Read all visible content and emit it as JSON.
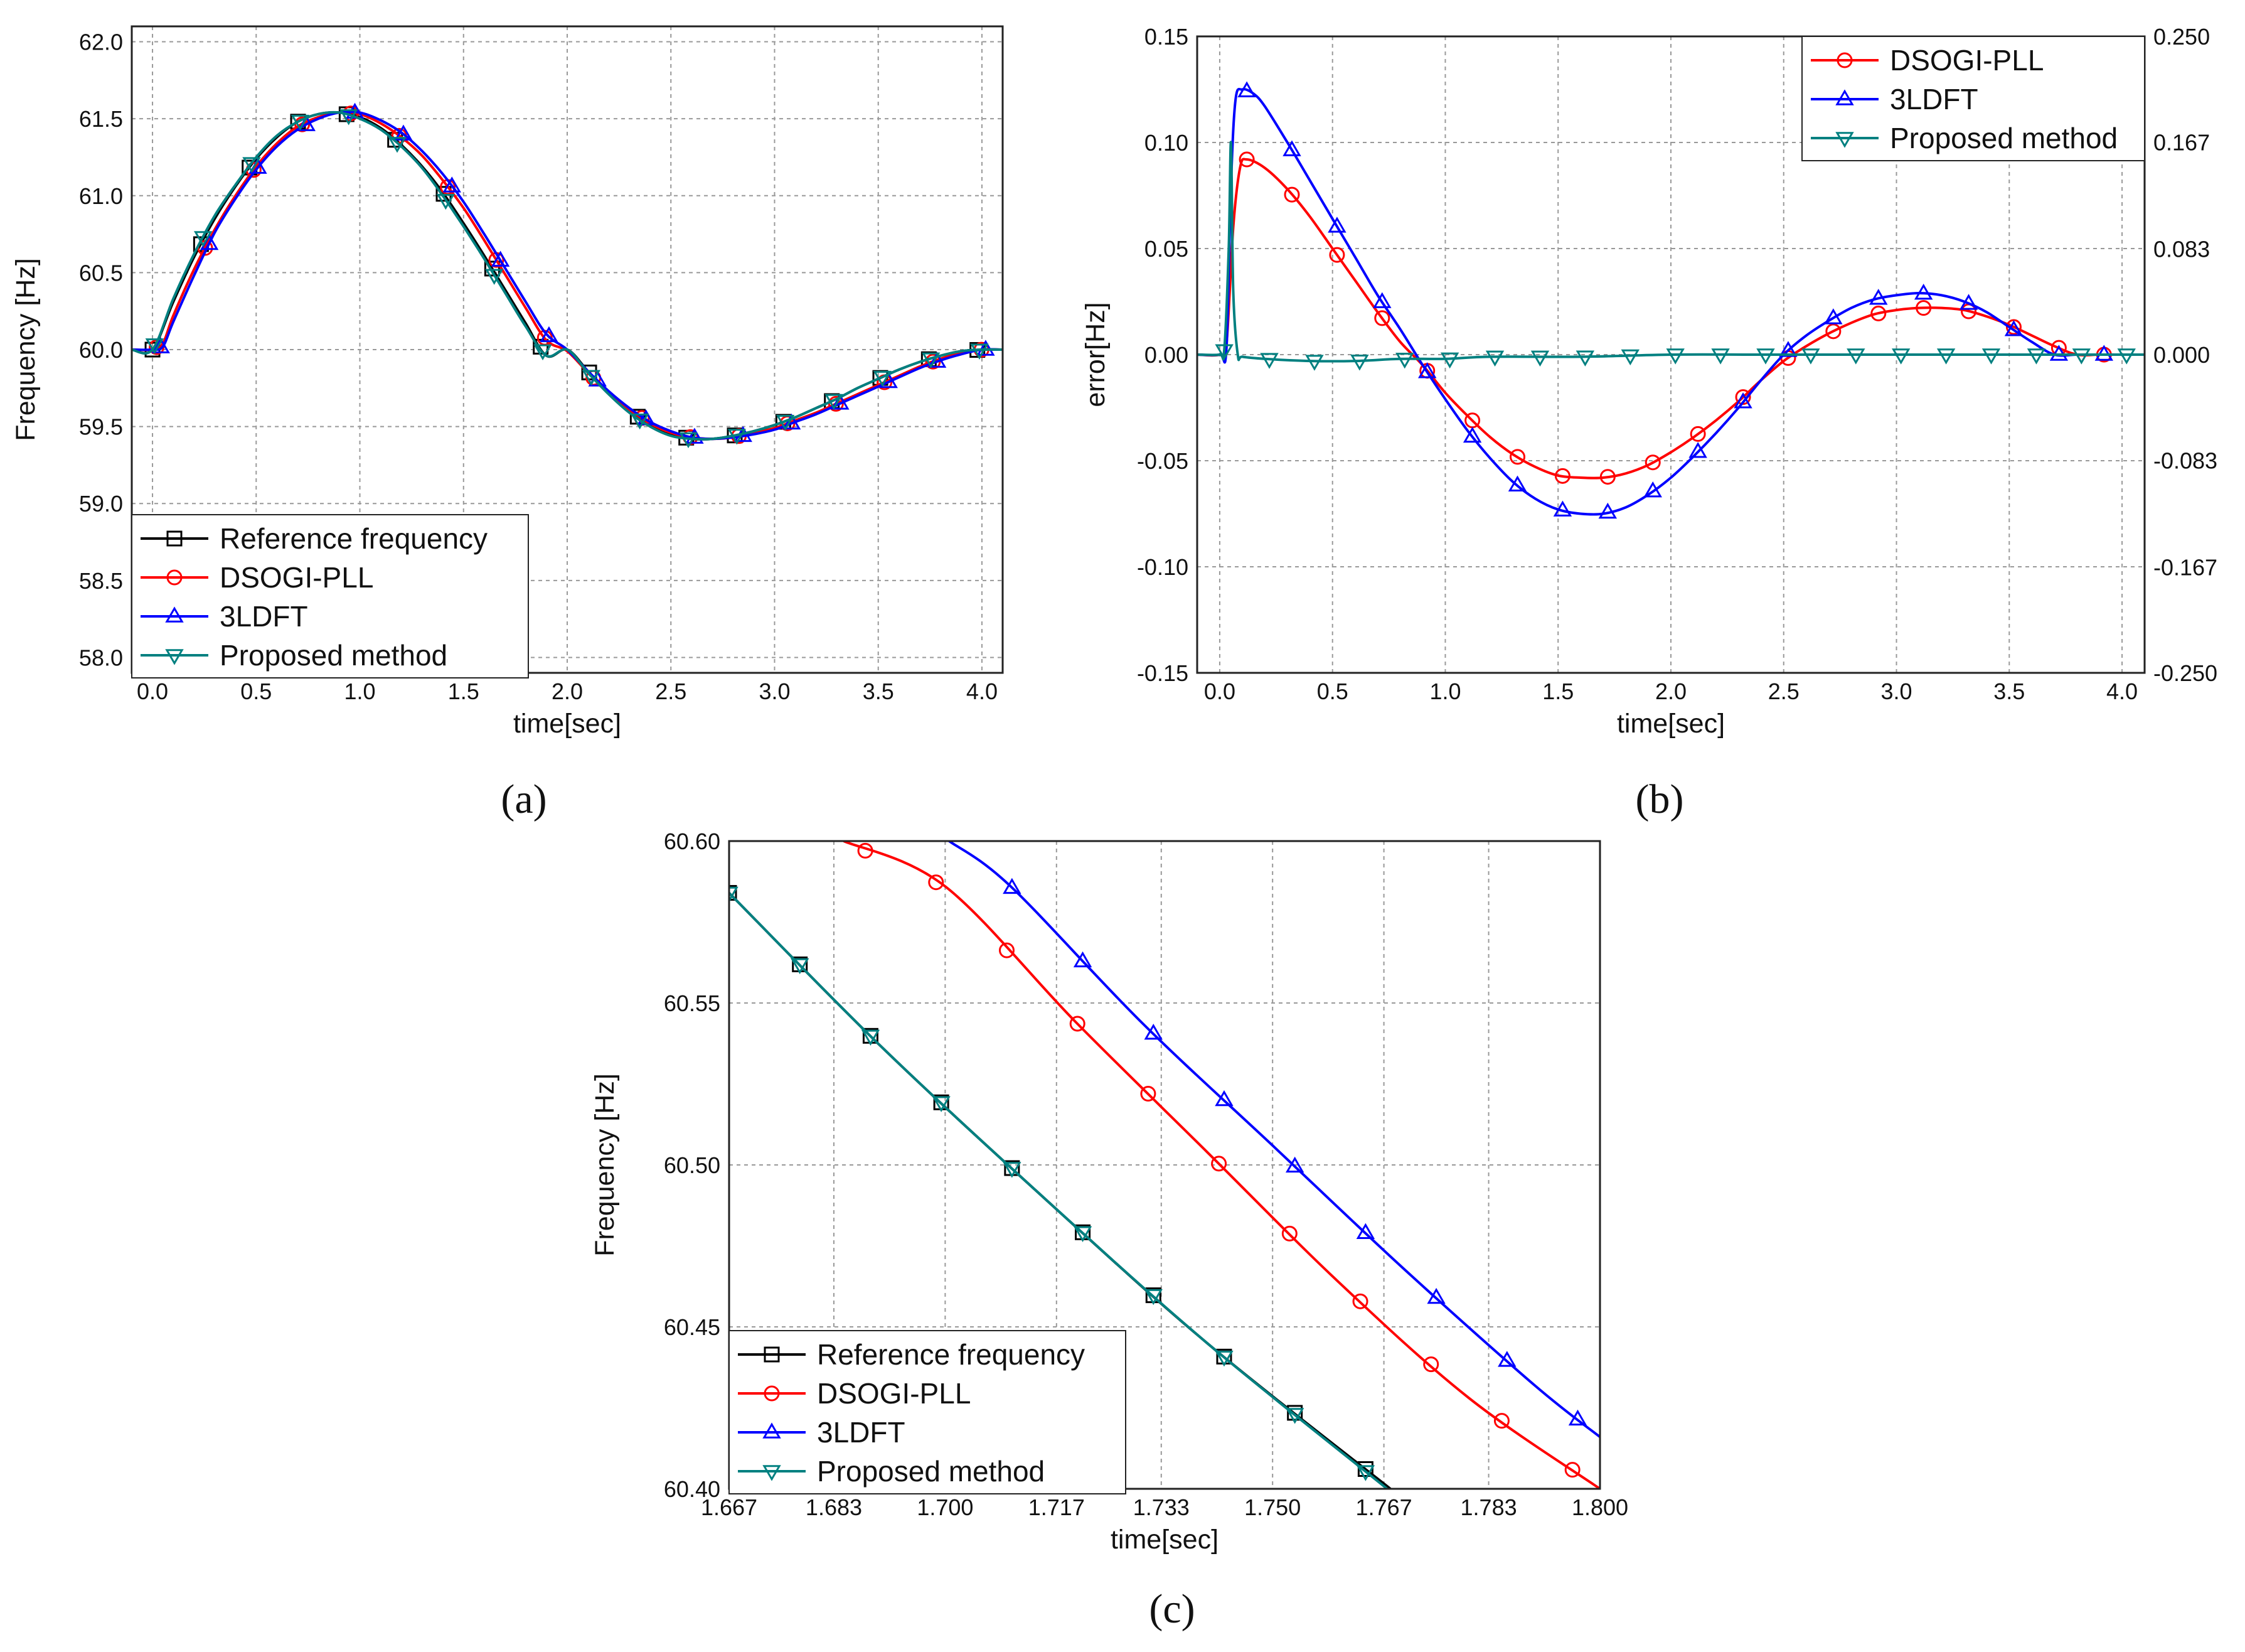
{
  "colors": {
    "reference": "#000000",
    "dsogi": "#ff0000",
    "ldft": "#0000ff",
    "proposed": "#008080",
    "grid": "#999999"
  },
  "chart_data": [
    {
      "type": "line",
      "panel": "a",
      "caption": "(a)",
      "xlabel": "time[sec]",
      "ylabel": "Frequency [Hz]",
      "xlim": [
        -0.1,
        4.1
      ],
      "ylim": [
        57.9,
        62.1
      ],
      "xticks": [
        "0.0",
        "0.5",
        "1.0",
        "1.5",
        "2.0",
        "2.5",
        "3.0",
        "3.5",
        "4.0"
      ],
      "yticks": [
        "58.0",
        "58.5",
        "59.0",
        "59.5",
        "60.0",
        "60.5",
        "61.0",
        "61.5",
        "62.0"
      ],
      "legend": [
        "Reference frequency",
        "DSOGI-PLL",
        "3LDFT",
        "Proposed method"
      ],
      "legend_position": "bottom-left",
      "series": [
        {
          "name": "Reference frequency",
          "x": [
            -0.1,
            0.0,
            0.1,
            0.2,
            0.3,
            0.4,
            0.5,
            0.6,
            0.7,
            0.8,
            0.9,
            1.0,
            1.1,
            1.2,
            1.3,
            1.4,
            1.5,
            1.6,
            1.7,
            1.8,
            1.9,
            2.0,
            2.1,
            2.2,
            2.3,
            2.4,
            2.5,
            2.6,
            2.7,
            2.8,
            2.9,
            3.0,
            3.1,
            3.2,
            3.3,
            3.4,
            3.5,
            3.6,
            3.7,
            3.8,
            3.9,
            4.0,
            4.1
          ],
          "values": [
            60.0,
            60.0,
            60.31,
            60.6,
            60.85,
            61.06,
            61.24,
            61.38,
            61.48,
            61.53,
            61.54,
            61.51,
            61.44,
            61.33,
            61.19,
            61.02,
            60.82,
            60.61,
            60.39,
            60.17,
            59.96,
            60.0,
            59.86,
            59.72,
            59.6,
            59.51,
            59.45,
            59.42,
            59.42,
            59.44,
            59.47,
            59.51,
            59.56,
            59.62,
            59.68,
            59.75,
            59.81,
            59.87,
            59.92,
            59.96,
            59.99,
            60.0,
            60.0
          ]
        },
        {
          "name": "DSOGI-PLL",
          "x": [
            -0.1,
            0.0,
            0.05,
            0.1,
            0.2,
            0.3,
            0.4,
            0.5,
            0.6,
            0.7,
            0.8,
            0.9,
            1.0,
            1.1,
            1.2,
            1.3,
            1.4,
            1.5,
            1.6,
            1.7,
            1.8,
            1.9,
            2.0,
            2.1,
            2.2,
            2.3,
            2.4,
            2.5,
            2.6,
            2.7,
            2.8,
            2.9,
            3.0,
            3.1,
            3.2,
            3.3,
            3.4,
            3.5,
            3.6,
            3.7,
            3.8,
            3.9,
            4.0,
            4.1
          ],
          "values": [
            60.0,
            60.0,
            60.04,
            60.22,
            60.52,
            60.78,
            61.0,
            61.19,
            61.34,
            61.45,
            61.51,
            61.54,
            61.53,
            61.47,
            61.38,
            61.26,
            61.1,
            60.92,
            60.71,
            60.49,
            60.27,
            60.06,
            59.99,
            59.85,
            59.72,
            59.61,
            59.52,
            59.46,
            59.43,
            59.42,
            59.43,
            59.46,
            59.49,
            59.54,
            59.59,
            59.65,
            59.71,
            59.77,
            59.83,
            59.89,
            59.94,
            59.98,
            60.0,
            60.0
          ]
        },
        {
          "name": "3LDFT",
          "x": [
            -0.1,
            0.0,
            0.05,
            0.1,
            0.2,
            0.3,
            0.4,
            0.5,
            0.6,
            0.7,
            0.8,
            0.9,
            1.0,
            1.1,
            1.2,
            1.3,
            1.4,
            1.5,
            1.6,
            1.7,
            1.8,
            1.9,
            2.0,
            2.1,
            2.2,
            2.3,
            2.4,
            2.5,
            2.6,
            2.7,
            2.8,
            2.9,
            3.0,
            3.1,
            3.2,
            3.3,
            3.4,
            3.5,
            3.6,
            3.7,
            3.8,
            3.9,
            4.0,
            4.1
          ],
          "values": [
            60.0,
            60.0,
            60.02,
            60.18,
            60.48,
            60.76,
            60.98,
            61.17,
            61.32,
            61.43,
            61.5,
            61.54,
            61.54,
            61.49,
            61.41,
            61.29,
            61.14,
            60.96,
            60.75,
            60.53,
            60.31,
            60.1,
            60.0,
            59.86,
            59.73,
            59.62,
            59.53,
            59.47,
            59.43,
            59.42,
            59.43,
            59.45,
            59.48,
            59.53,
            59.58,
            59.64,
            59.7,
            59.76,
            59.82,
            59.88,
            59.93,
            59.97,
            60.0,
            60.0
          ]
        },
        {
          "name": "Proposed method",
          "x": [
            -0.1,
            0.0,
            0.1,
            0.2,
            0.3,
            0.4,
            0.5,
            0.6,
            0.7,
            0.8,
            0.9,
            1.0,
            1.1,
            1.2,
            1.3,
            1.4,
            1.5,
            1.6,
            1.7,
            1.8,
            1.9,
            2.0,
            2.1,
            2.2,
            2.3,
            2.4,
            2.5,
            2.6,
            2.7,
            2.8,
            2.9,
            3.0,
            3.1,
            3.2,
            3.3,
            3.4,
            3.5,
            3.6,
            3.7,
            3.8,
            3.9,
            4.0,
            4.1
          ],
          "values": [
            60.0,
            60.0,
            60.33,
            60.62,
            60.87,
            61.07,
            61.25,
            61.39,
            61.48,
            61.53,
            61.54,
            61.5,
            61.43,
            61.32,
            61.18,
            61.0,
            60.8,
            60.59,
            60.37,
            60.15,
            59.96,
            60.0,
            59.85,
            59.71,
            59.59,
            59.5,
            59.44,
            59.42,
            59.42,
            59.44,
            59.47,
            59.51,
            59.56,
            59.62,
            59.68,
            59.75,
            59.81,
            59.87,
            59.92,
            59.96,
            59.99,
            60.0,
            60.0
          ]
        }
      ]
    },
    {
      "type": "line",
      "panel": "b",
      "caption": "(b)",
      "xlabel": "time[sec]",
      "ylabel": "error[Hz]",
      "xlim": [
        -0.1,
        4.1
      ],
      "ylim": [
        -0.15,
        0.15
      ],
      "y2lim": [
        -0.25,
        0.25
      ],
      "xticks": [
        "0.0",
        "0.5",
        "1.0",
        "1.5",
        "2.0",
        "2.5",
        "3.0",
        "3.5",
        "4.0"
      ],
      "yticks": [
        "-0.15",
        "-0.10",
        "-0.05",
        "0.00",
        "0.05",
        "0.10",
        "0.15"
      ],
      "y2ticks": [
        "-0.250",
        "-0.167",
        "-0.083",
        "0.000",
        "0.083",
        "0.167",
        "0.250"
      ],
      "legend": [
        "DSOGI-PLL",
        "3LDFT",
        "Proposed method"
      ],
      "legend_position": "top-right",
      "series": [
        {
          "name": "DSOGI-PLL",
          "x": [
            -0.1,
            0.0,
            0.03,
            0.06,
            0.09,
            0.12,
            0.2,
            0.3,
            0.4,
            0.5,
            0.6,
            0.7,
            0.8,
            0.9,
            1.0,
            1.1,
            1.2,
            1.3,
            1.4,
            1.5,
            1.6,
            1.7,
            1.8,
            1.9,
            2.0,
            2.1,
            2.2,
            2.3,
            2.4,
            2.5,
            2.6,
            2.7,
            2.8,
            2.9,
            3.0,
            3.1,
            3.2,
            3.3,
            3.4,
            3.5,
            3.6,
            3.7,
            3.8,
            3.9,
            4.0,
            4.1
          ],
          "values": [
            0.0,
            0.0,
            0.005,
            0.06,
            0.088,
            0.092,
            0.088,
            0.078,
            0.065,
            0.05,
            0.035,
            0.02,
            0.006,
            -0.005,
            -0.018,
            -0.029,
            -0.039,
            -0.047,
            -0.053,
            -0.057,
            -0.058,
            -0.058,
            -0.056,
            -0.052,
            -0.046,
            -0.039,
            -0.031,
            -0.022,
            -0.012,
            -0.003,
            0.004,
            0.01,
            0.015,
            0.019,
            0.021,
            0.022,
            0.022,
            0.021,
            0.018,
            0.014,
            0.009,
            0.004,
            0.0,
            0.0,
            0.0,
            0.0
          ]
        },
        {
          "name": "3LDFT",
          "x": [
            -0.1,
            0.0,
            0.03,
            0.05,
            0.07,
            0.1,
            0.15,
            0.2,
            0.3,
            0.4,
            0.5,
            0.6,
            0.7,
            0.8,
            0.9,
            1.0,
            1.1,
            1.2,
            1.3,
            1.4,
            1.5,
            1.6,
            1.7,
            1.8,
            1.9,
            2.0,
            2.1,
            2.2,
            2.3,
            2.4,
            2.5,
            2.6,
            2.7,
            2.8,
            2.9,
            3.0,
            3.1,
            3.2,
            3.3,
            3.4,
            3.5,
            3.6,
            3.7,
            3.8,
            3.9,
            4.0,
            4.1
          ],
          "values": [
            0.0,
            0.0,
            0.003,
            0.08,
            0.12,
            0.125,
            0.123,
            0.117,
            0.1,
            0.082,
            0.064,
            0.046,
            0.028,
            0.012,
            -0.005,
            -0.021,
            -0.036,
            -0.049,
            -0.06,
            -0.068,
            -0.073,
            -0.075,
            -0.075,
            -0.072,
            -0.066,
            -0.058,
            -0.048,
            -0.037,
            -0.025,
            -0.012,
            0.0,
            0.009,
            0.016,
            0.022,
            0.026,
            0.028,
            0.029,
            0.028,
            0.025,
            0.02,
            0.013,
            0.006,
            0.0,
            0.0,
            0.0,
            0.0,
            0.0
          ]
        },
        {
          "name": "Proposed method",
          "x": [
            -0.1,
            0.0,
            0.02,
            0.04,
            0.05,
            0.06,
            0.08,
            0.1,
            0.2,
            0.4,
            0.6,
            0.8,
            1.0,
            1.2,
            1.6,
            2.0,
            2.4,
            2.8,
            3.2,
            3.6,
            4.0,
            4.1
          ],
          "values": [
            0.0,
            0.0,
            0.002,
            0.05,
            0.1,
            0.03,
            0.0,
            -0.001,
            -0.002,
            -0.003,
            -0.003,
            -0.002,
            -0.002,
            -0.001,
            -0.001,
            0.0,
            0.0,
            0.0,
            0.0,
            0.0,
            0.0,
            0.0
          ]
        }
      ]
    },
    {
      "type": "line",
      "panel": "c",
      "caption": "(c)",
      "xlabel": "time[sec]",
      "ylabel": "Frequency [Hz]",
      "xlim": [
        1.667,
        1.8
      ],
      "ylim": [
        60.4,
        60.6
      ],
      "xticks": [
        "1.667",
        "1.683",
        "1.700",
        "1.717",
        "1.733",
        "1.750",
        "1.767",
        "1.783",
        "1.800"
      ],
      "yticks": [
        "60.40",
        "60.45",
        "60.50",
        "60.55",
        "60.60"
      ],
      "legend": [
        "Reference frequency",
        "DSOGI-PLL",
        "3LDFT",
        "Proposed method"
      ],
      "legend_position": "bottom-left",
      "series": [
        {
          "name": "Reference frequency",
          "x": [
            1.667,
            1.69,
            1.715,
            1.74,
            1.768
          ],
          "values": [
            60.584,
            60.537,
            60.49,
            60.445,
            60.4
          ]
        },
        {
          "name": "DSOGI-PLL",
          "x": [
            1.6845,
            1.7,
            1.72,
            1.74,
            1.76,
            1.78,
            1.8
          ],
          "values": [
            60.6,
            60.586,
            60.544,
            60.504,
            60.464,
            60.428,
            60.4
          ]
        },
        {
          "name": "3LDFT",
          "x": [
            1.7006,
            1.71,
            1.73,
            1.75,
            1.77,
            1.79,
            1.8
          ],
          "values": [
            60.6,
            60.586,
            60.544,
            60.506,
            60.468,
            60.432,
            60.416
          ]
        },
        {
          "name": "Proposed method",
          "x": [
            1.667,
            1.69,
            1.715,
            1.74,
            1.7675
          ],
          "values": [
            60.584,
            60.537,
            60.49,
            60.445,
            60.4
          ]
        }
      ]
    }
  ]
}
